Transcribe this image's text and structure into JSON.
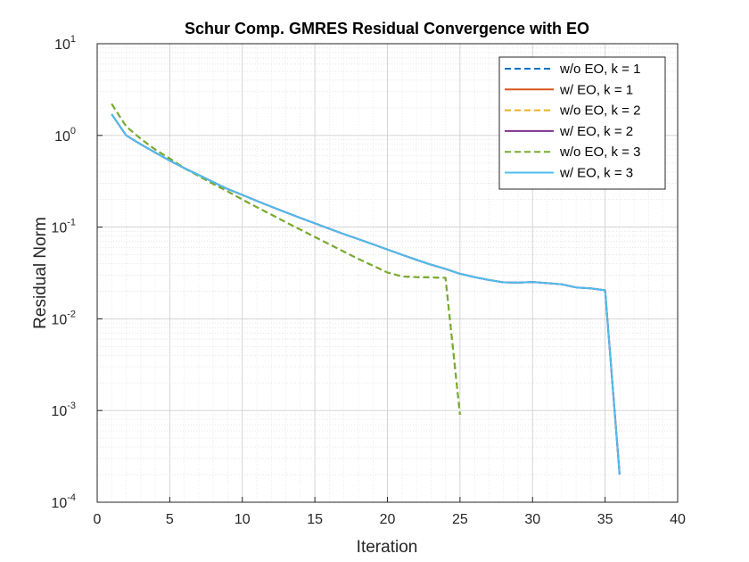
{
  "chart_data": {
    "type": "line",
    "title": "Schur Comp. GMRES Residual Convergence with EO",
    "xlabel": "Iteration",
    "ylabel": "Residual Norm",
    "xlim": [
      0,
      40
    ],
    "ylim": [
      0.0001,
      10
    ],
    "yscale": "log",
    "grid": true,
    "minor_grid": true,
    "legend_position": "top-right",
    "x_ticks": [
      "0",
      "5",
      "10",
      "15",
      "20",
      "25",
      "30",
      "35",
      "40"
    ],
    "y_ticks": [
      {
        "base": "10",
        "exp": "-4"
      },
      {
        "base": "10",
        "exp": "-3"
      },
      {
        "base": "10",
        "exp": "-2"
      },
      {
        "base": "10",
        "exp": "-1"
      },
      {
        "base": "10",
        "exp": "0"
      },
      {
        "base": "10",
        "exp": "1"
      }
    ],
    "series": [
      {
        "name": "w/o EO, k = 1",
        "color": "#0072BD",
        "dash": "dashed",
        "x": [
          1,
          2,
          3,
          4,
          5,
          6,
          7,
          8,
          9,
          10,
          11,
          12,
          13,
          14,
          15,
          16,
          17,
          18,
          19,
          20,
          21,
          22,
          23,
          24,
          25
        ],
        "y": [
          2.2,
          1.25,
          0.92,
          0.7,
          0.56,
          0.44,
          0.36,
          0.295,
          0.245,
          0.2,
          0.165,
          0.137,
          0.113,
          0.094,
          0.078,
          0.065,
          0.054,
          0.045,
          0.038,
          0.032,
          0.029,
          0.0285,
          0.0283,
          0.028,
          0.0009
        ]
      },
      {
        "name": "w/ EO, k = 1",
        "color": "#D95319",
        "dash": "solid",
        "x": [
          1,
          2,
          3,
          4,
          5,
          6,
          7,
          8,
          9,
          10,
          11,
          12,
          13,
          14,
          15,
          16,
          17,
          18,
          19,
          20,
          21,
          22,
          23,
          24,
          25,
          26,
          27,
          28,
          29,
          30,
          31,
          32,
          33,
          34,
          35,
          36
        ],
        "y": [
          1.7,
          1.0,
          0.8,
          0.65,
          0.53,
          0.44,
          0.37,
          0.31,
          0.26,
          0.225,
          0.193,
          0.167,
          0.145,
          0.126,
          0.11,
          0.096,
          0.084,
          0.074,
          0.065,
          0.057,
          0.05,
          0.044,
          0.039,
          0.035,
          0.031,
          0.0285,
          0.0265,
          0.025,
          0.0248,
          0.0252,
          0.0245,
          0.0238,
          0.022,
          0.0215,
          0.0205,
          0.0002
        ]
      },
      {
        "name": "w/o EO, k = 2",
        "color": "#EDB120",
        "dash": "dashed",
        "x": [
          1,
          2,
          3,
          4,
          5,
          6,
          7,
          8,
          9,
          10,
          11,
          12,
          13,
          14,
          15,
          16,
          17,
          18,
          19,
          20,
          21,
          22,
          23,
          24,
          25
        ],
        "y": [
          2.2,
          1.25,
          0.92,
          0.7,
          0.56,
          0.44,
          0.36,
          0.295,
          0.245,
          0.2,
          0.165,
          0.137,
          0.113,
          0.094,
          0.078,
          0.065,
          0.054,
          0.045,
          0.038,
          0.032,
          0.029,
          0.0285,
          0.0283,
          0.028,
          0.0009
        ]
      },
      {
        "name": "w/ EO, k = 2",
        "color": "#7E2F8E",
        "dash": "solid",
        "x": [
          1,
          2,
          3,
          4,
          5,
          6,
          7,
          8,
          9,
          10,
          11,
          12,
          13,
          14,
          15,
          16,
          17,
          18,
          19,
          20,
          21,
          22,
          23,
          24,
          25,
          26,
          27,
          28,
          29,
          30,
          31,
          32,
          33,
          34,
          35,
          36
        ],
        "y": [
          1.7,
          1.0,
          0.8,
          0.65,
          0.53,
          0.44,
          0.37,
          0.31,
          0.26,
          0.225,
          0.193,
          0.167,
          0.145,
          0.126,
          0.11,
          0.096,
          0.084,
          0.074,
          0.065,
          0.057,
          0.05,
          0.044,
          0.039,
          0.035,
          0.031,
          0.0285,
          0.0265,
          0.025,
          0.0248,
          0.0252,
          0.0245,
          0.0238,
          0.022,
          0.0215,
          0.0205,
          0.0002
        ]
      },
      {
        "name": "w/o EO, k = 3",
        "color": "#77AC30",
        "dash": "dashed",
        "x": [
          1,
          2,
          3,
          4,
          5,
          6,
          7,
          8,
          9,
          10,
          11,
          12,
          13,
          14,
          15,
          16,
          17,
          18,
          19,
          20,
          21,
          22,
          23,
          24,
          25
        ],
        "y": [
          2.2,
          1.25,
          0.92,
          0.7,
          0.56,
          0.44,
          0.36,
          0.295,
          0.245,
          0.2,
          0.165,
          0.137,
          0.113,
          0.094,
          0.078,
          0.065,
          0.054,
          0.045,
          0.038,
          0.032,
          0.029,
          0.0285,
          0.0283,
          0.028,
          0.0009
        ]
      },
      {
        "name": "w/ EO, k = 3",
        "color": "#4DBEEE",
        "dash": "solid",
        "x": [
          1,
          2,
          3,
          4,
          5,
          6,
          7,
          8,
          9,
          10,
          11,
          12,
          13,
          14,
          15,
          16,
          17,
          18,
          19,
          20,
          21,
          22,
          23,
          24,
          25,
          26,
          27,
          28,
          29,
          30,
          31,
          32,
          33,
          34,
          35,
          36
        ],
        "y": [
          1.7,
          1.0,
          0.8,
          0.65,
          0.53,
          0.44,
          0.37,
          0.31,
          0.26,
          0.225,
          0.193,
          0.167,
          0.145,
          0.126,
          0.11,
          0.096,
          0.084,
          0.074,
          0.065,
          0.057,
          0.05,
          0.044,
          0.039,
          0.035,
          0.031,
          0.0285,
          0.0265,
          0.025,
          0.0248,
          0.0252,
          0.0245,
          0.0238,
          0.022,
          0.0215,
          0.0205,
          0.0002
        ]
      }
    ]
  }
}
